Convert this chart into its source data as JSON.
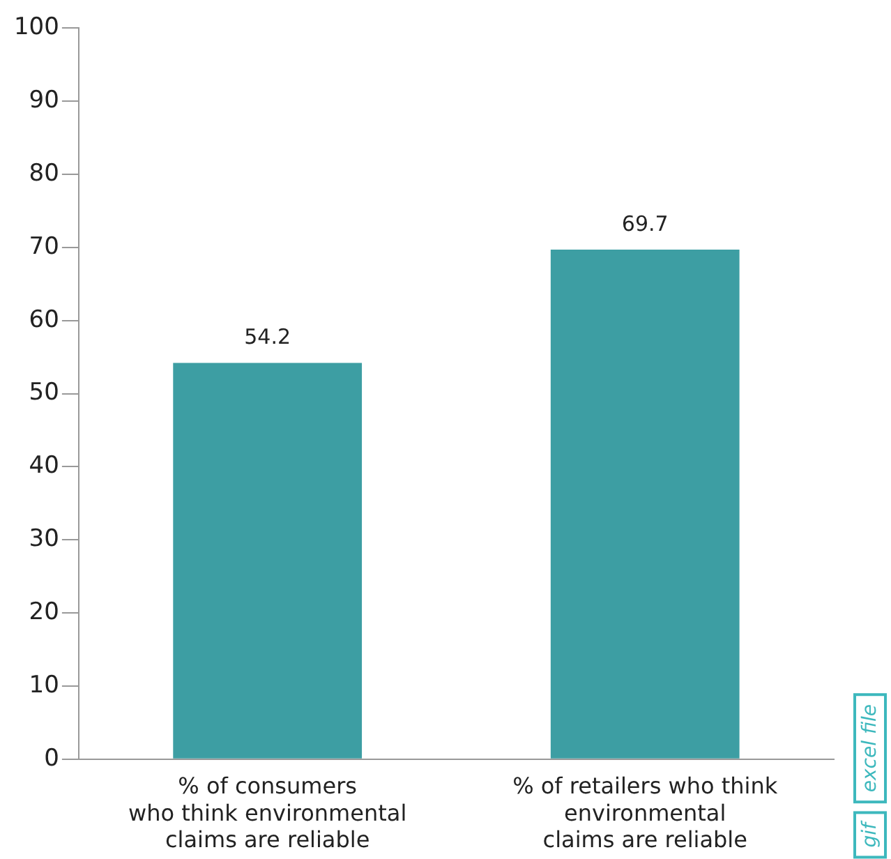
{
  "chart_data": {
    "type": "bar",
    "categories": [
      "% of consumers\nwho think environmental\nclaims are reliable",
      "% of retailers who think\nenvironmental\nclaims are reliable"
    ],
    "values": [
      54.2,
      69.7
    ],
    "color": "#3d9ea3",
    "ylim": [
      0,
      100
    ],
    "yticks": [
      0,
      10,
      20,
      30,
      40,
      50,
      60,
      70,
      80,
      90,
      100
    ],
    "grid": false,
    "legend": false,
    "data_labels": true,
    "annotations": [
      "excel file",
      "gif"
    ]
  }
}
